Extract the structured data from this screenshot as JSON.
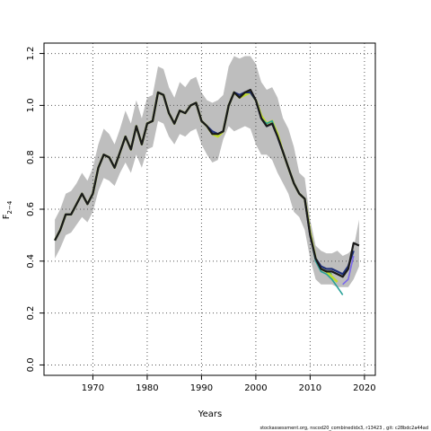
{
  "chart_data": {
    "type": "line",
    "title": "",
    "xlabel": "Years",
    "ylabel": {
      "main": "F",
      "sub": "2−4"
    },
    "xlim": [
      1961,
      2022
    ],
    "ylim": [
      -0.04,
      1.24
    ],
    "xticks": [
      1970,
      1980,
      1990,
      2000,
      2010,
      2020
    ],
    "yticks": [
      0.0,
      0.2,
      0.4,
      0.6,
      0.8,
      1.0,
      1.2
    ],
    "grid": true,
    "colors": {
      "band": "#bebebe",
      "grid": "#555555",
      "series": [
        "#1a1a1a",
        "#1f2f7a",
        "#2aa198",
        "#c0dc2e",
        "#4caf50",
        "#7b68ee"
      ]
    },
    "confidence_band": {
      "x": [
        1963,
        1964,
        1965,
        1966,
        1967,
        1968,
        1969,
        1970,
        1971,
        1972,
        1973,
        1974,
        1975,
        1976,
        1977,
        1978,
        1979,
        1980,
        1981,
        1982,
        1983,
        1984,
        1985,
        1986,
        1987,
        1988,
        1989,
        1990,
        1991,
        1992,
        1993,
        1994,
        1995,
        1996,
        1997,
        1998,
        1999,
        2000,
        2001,
        2002,
        2003,
        2004,
        2005,
        2006,
        2007,
        2008,
        2009,
        2010,
        2011,
        2012,
        2013,
        2014,
        2015,
        2016,
        2017,
        2018,
        2019
      ],
      "lower": [
        0.41,
        0.45,
        0.5,
        0.51,
        0.54,
        0.57,
        0.55,
        0.59,
        0.67,
        0.72,
        0.71,
        0.69,
        0.74,
        0.78,
        0.74,
        0.81,
        0.76,
        0.83,
        0.84,
        0.94,
        0.93,
        0.88,
        0.85,
        0.89,
        0.88,
        0.9,
        0.91,
        0.85,
        0.81,
        0.78,
        0.79,
        0.87,
        0.92,
        0.9,
        0.91,
        0.92,
        0.91,
        0.85,
        0.81,
        0.81,
        0.79,
        0.74,
        0.7,
        0.66,
        0.59,
        0.57,
        0.52,
        0.41,
        0.33,
        0.31,
        0.31,
        0.31,
        0.3,
        0.3,
        0.3,
        0.33,
        0.38
      ],
      "upper": [
        0.56,
        0.6,
        0.66,
        0.67,
        0.7,
        0.74,
        0.71,
        0.76,
        0.85,
        0.91,
        0.89,
        0.85,
        0.91,
        0.98,
        0.93,
        1.02,
        0.95,
        1.03,
        1.04,
        1.15,
        1.14,
        1.07,
        1.03,
        1.09,
        1.07,
        1.1,
        1.11,
        1.05,
        1.02,
        1.01,
        1.02,
        1.04,
        1.15,
        1.19,
        1.18,
        1.19,
        1.19,
        1.16,
        1.09,
        1.06,
        1.07,
        1.03,
        0.95,
        0.91,
        0.84,
        0.74,
        0.72,
        0.56,
        0.46,
        0.44,
        0.43,
        0.43,
        0.44,
        0.42,
        0.43,
        0.45,
        0.56
      ]
    },
    "series": [
      {
        "values": [
          [
            1963,
            0.48
          ],
          [
            1964,
            0.52
          ],
          [
            1965,
            0.58
          ],
          [
            1966,
            0.58
          ],
          [
            1967,
            0.62
          ],
          [
            1968,
            0.66
          ],
          [
            1969,
            0.62
          ],
          [
            1970,
            0.66
          ],
          [
            1971,
            0.76
          ],
          [
            1972,
            0.81
          ],
          [
            1973,
            0.8
          ],
          [
            1974,
            0.76
          ],
          [
            1975,
            0.82
          ],
          [
            1976,
            0.88
          ],
          [
            1977,
            0.83
          ],
          [
            1978,
            0.92
          ],
          [
            1979,
            0.85
          ],
          [
            1980,
            0.93
          ],
          [
            1981,
            0.94
          ],
          [
            1982,
            1.05
          ],
          [
            1983,
            1.04
          ],
          [
            1984,
            0.97
          ],
          [
            1985,
            0.93
          ],
          [
            1986,
            0.98
          ],
          [
            1987,
            0.97
          ],
          [
            1988,
            1.0
          ],
          [
            1989,
            1.01
          ],
          [
            1990,
            0.94
          ],
          [
            1991,
            0.92
          ],
          [
            1992,
            0.89
          ],
          [
            1993,
            0.89
          ],
          [
            1994,
            0.9
          ],
          [
            1995,
            1.0
          ],
          [
            1996,
            1.05
          ],
          [
            1997,
            1.03
          ],
          [
            1998,
            1.05
          ],
          [
            1999,
            1.06
          ],
          [
            2000,
            1.02
          ],
          [
            2001,
            0.95
          ],
          [
            2002,
            0.92
          ],
          [
            2003,
            0.93
          ],
          [
            2004,
            0.88
          ],
          [
            2005,
            0.82
          ],
          [
            2006,
            0.76
          ],
          [
            2007,
            0.7
          ],
          [
            2008,
            0.66
          ],
          [
            2009,
            0.64
          ],
          [
            2010,
            0.5
          ],
          [
            2011,
            0.41
          ],
          [
            2012,
            0.37
          ],
          [
            2013,
            0.36
          ],
          [
            2014,
            0.36
          ],
          [
            2015,
            0.35
          ],
          [
            2016,
            0.34
          ],
          [
            2017,
            0.37
          ],
          [
            2018,
            0.47
          ],
          [
            2019,
            0.46
          ]
        ]
      },
      {
        "values": [
          [
            1963,
            0.48
          ],
          [
            1964,
            0.52
          ],
          [
            1965,
            0.58
          ],
          [
            1966,
            0.58
          ],
          [
            1967,
            0.62
          ],
          [
            1968,
            0.66
          ],
          [
            1969,
            0.62
          ],
          [
            1970,
            0.66
          ],
          [
            1971,
            0.76
          ],
          [
            1972,
            0.81
          ],
          [
            1973,
            0.8
          ],
          [
            1974,
            0.76
          ],
          [
            1975,
            0.82
          ],
          [
            1976,
            0.88
          ],
          [
            1977,
            0.83
          ],
          [
            1978,
            0.92
          ],
          [
            1979,
            0.85
          ],
          [
            1980,
            0.93
          ],
          [
            1981,
            0.94
          ],
          [
            1982,
            1.05
          ],
          [
            1983,
            1.04
          ],
          [
            1984,
            0.97
          ],
          [
            1985,
            0.93
          ],
          [
            1986,
            0.98
          ],
          [
            1987,
            0.97
          ],
          [
            1988,
            1.0
          ],
          [
            1989,
            1.01
          ],
          [
            1990,
            0.94
          ],
          [
            1991,
            0.92
          ],
          [
            1992,
            0.9
          ],
          [
            1993,
            0.89
          ],
          [
            1994,
            0.9
          ],
          [
            1995,
            1.0
          ],
          [
            1996,
            1.05
          ],
          [
            1997,
            1.04
          ],
          [
            1998,
            1.05
          ],
          [
            1999,
            1.05
          ],
          [
            2000,
            1.02
          ],
          [
            2001,
            0.95
          ],
          [
            2002,
            0.92
          ],
          [
            2003,
            0.93
          ],
          [
            2004,
            0.88
          ],
          [
            2005,
            0.82
          ],
          [
            2006,
            0.76
          ],
          [
            2007,
            0.7
          ],
          [
            2008,
            0.66
          ],
          [
            2009,
            0.64
          ],
          [
            2010,
            0.5
          ],
          [
            2011,
            0.41
          ],
          [
            2012,
            0.38
          ],
          [
            2013,
            0.37
          ],
          [
            2014,
            0.37
          ],
          [
            2015,
            0.36
          ],
          [
            2016,
            0.35
          ],
          [
            2017,
            0.38
          ],
          [
            2018,
            0.44
          ]
        ]
      },
      {
        "values": [
          [
            1963,
            0.48
          ],
          [
            1964,
            0.52
          ],
          [
            1965,
            0.58
          ],
          [
            1966,
            0.58
          ],
          [
            1967,
            0.62
          ],
          [
            1968,
            0.66
          ],
          [
            1969,
            0.62
          ],
          [
            1970,
            0.66
          ],
          [
            1971,
            0.76
          ],
          [
            1972,
            0.81
          ],
          [
            1973,
            0.8
          ],
          [
            1974,
            0.76
          ],
          [
            1975,
            0.82
          ],
          [
            1976,
            0.88
          ],
          [
            1977,
            0.83
          ],
          [
            1978,
            0.92
          ],
          [
            1979,
            0.85
          ],
          [
            1980,
            0.93
          ],
          [
            1981,
            0.94
          ],
          [
            1982,
            1.05
          ],
          [
            1983,
            1.04
          ],
          [
            1984,
            0.97
          ],
          [
            1985,
            0.93
          ],
          [
            1986,
            0.98
          ],
          [
            1987,
            0.97
          ],
          [
            1988,
            1.0
          ],
          [
            1989,
            1.01
          ],
          [
            1990,
            0.94
          ],
          [
            1991,
            0.92
          ],
          [
            1992,
            0.89
          ],
          [
            1993,
            0.89
          ],
          [
            1994,
            0.9
          ],
          [
            1995,
            1.0
          ],
          [
            1996,
            1.05
          ],
          [
            1997,
            1.03
          ],
          [
            1998,
            1.05
          ],
          [
            1999,
            1.05
          ],
          [
            2000,
            1.02
          ],
          [
            2001,
            0.95
          ],
          [
            2002,
            0.93
          ],
          [
            2003,
            0.94
          ],
          [
            2004,
            0.88
          ],
          [
            2005,
            0.82
          ],
          [
            2006,
            0.76
          ],
          [
            2007,
            0.7
          ],
          [
            2008,
            0.66
          ],
          [
            2009,
            0.64
          ],
          [
            2010,
            0.5
          ],
          [
            2011,
            0.4
          ],
          [
            2012,
            0.36
          ],
          [
            2013,
            0.35
          ],
          [
            2014,
            0.33
          ],
          [
            2015,
            0.3
          ],
          [
            2016,
            0.27
          ]
        ]
      },
      {
        "values": [
          [
            1963,
            0.48
          ],
          [
            1964,
            0.52
          ],
          [
            1965,
            0.58
          ],
          [
            1966,
            0.58
          ],
          [
            1967,
            0.62
          ],
          [
            1968,
            0.66
          ],
          [
            1969,
            0.62
          ],
          [
            1970,
            0.66
          ],
          [
            1971,
            0.76
          ],
          [
            1972,
            0.81
          ],
          [
            1973,
            0.8
          ],
          [
            1974,
            0.76
          ],
          [
            1975,
            0.82
          ],
          [
            1976,
            0.88
          ],
          [
            1977,
            0.83
          ],
          [
            1978,
            0.92
          ],
          [
            1979,
            0.85
          ],
          [
            1980,
            0.93
          ],
          [
            1981,
            0.94
          ],
          [
            1982,
            1.05
          ],
          [
            1983,
            1.04
          ],
          [
            1984,
            0.97
          ],
          [
            1985,
            0.93
          ],
          [
            1986,
            0.98
          ],
          [
            1987,
            0.97
          ],
          [
            1988,
            1.0
          ],
          [
            1989,
            1.01
          ],
          [
            1990,
            0.94
          ],
          [
            1991,
            0.92
          ],
          [
            1992,
            0.89
          ],
          [
            1993,
            0.88
          ],
          [
            1994,
            0.9
          ],
          [
            1995,
            1.0
          ],
          [
            1996,
            1.05
          ],
          [
            1997,
            1.03
          ],
          [
            1998,
            1.04
          ],
          [
            1999,
            1.05
          ],
          [
            2000,
            1.02
          ],
          [
            2001,
            0.96
          ],
          [
            2002,
            0.93
          ],
          [
            2003,
            0.94
          ],
          [
            2004,
            0.89
          ],
          [
            2005,
            0.82
          ],
          [
            2006,
            0.76
          ],
          [
            2007,
            0.7
          ],
          [
            2008,
            0.66
          ],
          [
            2009,
            0.64
          ],
          [
            2010,
            0.51
          ],
          [
            2011,
            0.41
          ],
          [
            2012,
            0.37
          ],
          [
            2013,
            0.36
          ],
          [
            2014,
            0.34
          ],
          [
            2015,
            0.32
          ]
        ]
      },
      {
        "values": [
          [
            1963,
            0.48
          ],
          [
            1964,
            0.52
          ],
          [
            1965,
            0.58
          ],
          [
            1966,
            0.58
          ],
          [
            1967,
            0.62
          ],
          [
            1968,
            0.66
          ],
          [
            1969,
            0.62
          ],
          [
            1970,
            0.66
          ],
          [
            1971,
            0.76
          ],
          [
            1972,
            0.81
          ],
          [
            1973,
            0.8
          ],
          [
            1974,
            0.76
          ],
          [
            1975,
            0.82
          ],
          [
            1976,
            0.88
          ],
          [
            1977,
            0.83
          ],
          [
            1978,
            0.92
          ],
          [
            1979,
            0.85
          ],
          [
            1980,
            0.93
          ],
          [
            1981,
            0.94
          ],
          [
            1982,
            1.05
          ],
          [
            1983,
            1.04
          ],
          [
            1984,
            0.97
          ],
          [
            1985,
            0.93
          ],
          [
            1986,
            0.98
          ],
          [
            1987,
            0.97
          ],
          [
            1988,
            1.0
          ],
          [
            1989,
            1.01
          ],
          [
            1990,
            0.94
          ],
          [
            1991,
            0.92
          ],
          [
            1992,
            0.89
          ],
          [
            1993,
            0.88
          ],
          [
            1994,
            0.9
          ],
          [
            1995,
            1.0
          ],
          [
            1996,
            1.05
          ],
          [
            1997,
            1.03
          ],
          [
            1998,
            1.04
          ],
          [
            1999,
            1.05
          ],
          [
            2000,
            1.02
          ],
          [
            2001,
            0.96
          ],
          [
            2002,
            0.93
          ],
          [
            2003,
            0.94
          ],
          [
            2004,
            0.89
          ],
          [
            2005,
            0.82
          ],
          [
            2006,
            0.76
          ],
          [
            2007,
            0.7
          ],
          [
            2008,
            0.66
          ],
          [
            2009,
            0.64
          ],
          [
            2010,
            0.51
          ],
          [
            2011,
            0.41
          ],
          [
            2012,
            0.37
          ],
          [
            2013,
            0.36
          ],
          [
            2014,
            0.35
          ]
        ]
      },
      {
        "values": [
          [
            2016,
            0.31
          ],
          [
            2017,
            0.33
          ],
          [
            2018,
            0.42
          ]
        ]
      }
    ]
  },
  "footer": "stockassessment.org, nscod20_combinedidx3, r13423 , git: c28bdc2a44ad"
}
